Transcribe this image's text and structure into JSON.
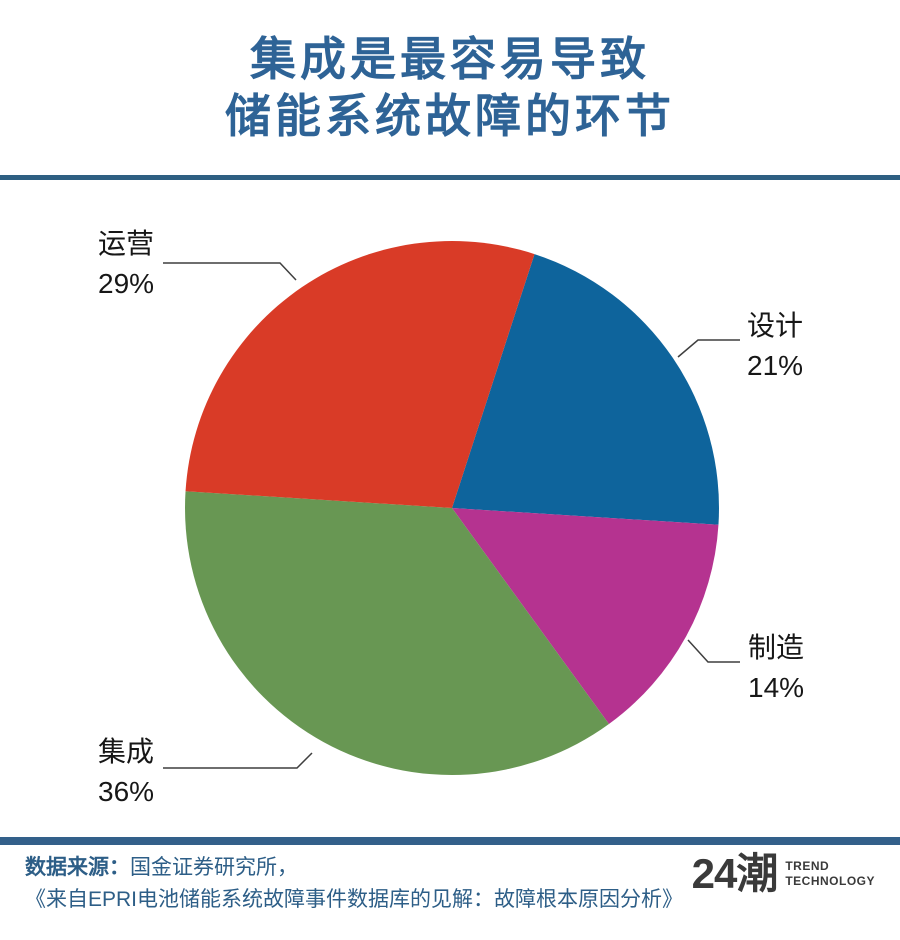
{
  "header": {
    "title_line1": "集成是最容易导致",
    "title_line2": "储能系统故障的环节",
    "title_color": "#2e6396",
    "divider_color": "#2e5f82"
  },
  "chart_data": {
    "type": "pie",
    "title": "集成是最容易导致储能系统故障的环节",
    "direction": "clockwise",
    "start_angle_deg_from_top": 18,
    "slices": [
      {
        "label": "设计",
        "value": 21,
        "color": "#0e649c"
      },
      {
        "label": "制造",
        "value": 14,
        "color": "#b53390"
      },
      {
        "label": "集成",
        "value": 36,
        "color": "#689753"
      },
      {
        "label": "运营",
        "value": 29,
        "color": "#d93b27"
      }
    ],
    "callouts": [
      {
        "label": "运营",
        "pct": "29%"
      },
      {
        "label": "设计",
        "pct": "21%"
      },
      {
        "label": "制造",
        "pct": "14%"
      },
      {
        "label": "集成",
        "pct": "36%"
      }
    ],
    "legend_position": "callout-labels",
    "grid": false
  },
  "footer": {
    "source_prefix": "数据来源：",
    "source_line1": "国金证券研究所，",
    "source_line2": "《来自EPRI电池储能系统故障事件数据库的见解：故障根本原因分析》",
    "text_color": "#2d5e87",
    "divider_color": "#33608a",
    "logo_text": "24潮",
    "logo_sub1": "TREND",
    "logo_sub2": "TECHNOLOGY"
  }
}
